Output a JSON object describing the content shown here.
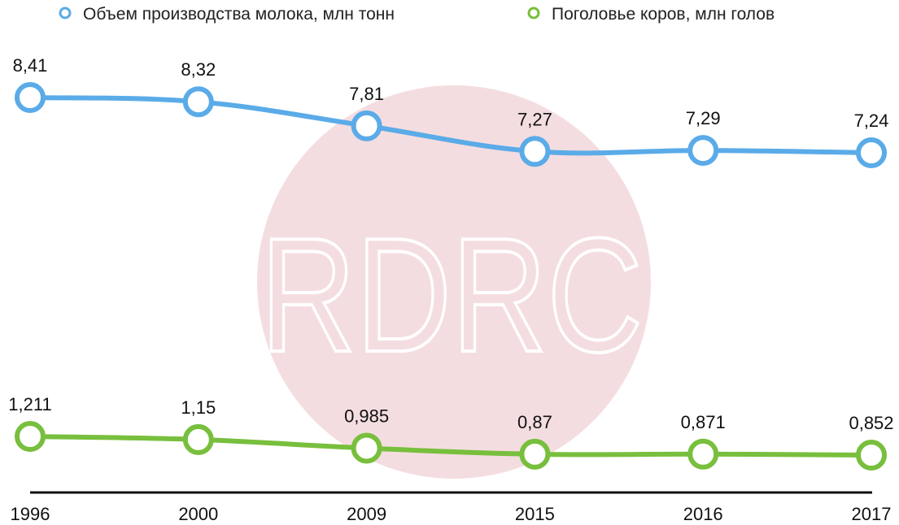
{
  "chart_data": {
    "type": "line",
    "categories": [
      "1996",
      "2000",
      "2009",
      "2015",
      "2016",
      "2017"
    ],
    "series": [
      {
        "name": "Объем производства молока, млн тонн",
        "values": [
          8.41,
          8.32,
          7.81,
          7.27,
          7.29,
          7.24
        ],
        "labels": [
          "8,41",
          "8,32",
          "7,81",
          "7,27",
          "7,29",
          "7,24"
        ],
        "color": "#5aabe8"
      },
      {
        "name": "Поголовье коров, млн голов",
        "values": [
          1.211,
          1.15,
          0.985,
          0.87,
          0.871,
          0.852
        ],
        "labels": [
          "1,211",
          "1,15",
          "0,985",
          "0,87",
          "0,871",
          "0,852"
        ],
        "color": "#78bf3d"
      }
    ],
    "legend": "top",
    "grid": false
  },
  "watermark": {
    "text": "RDRC",
    "circle_color": "#f4dde0",
    "text_color": "#ffffff"
  }
}
